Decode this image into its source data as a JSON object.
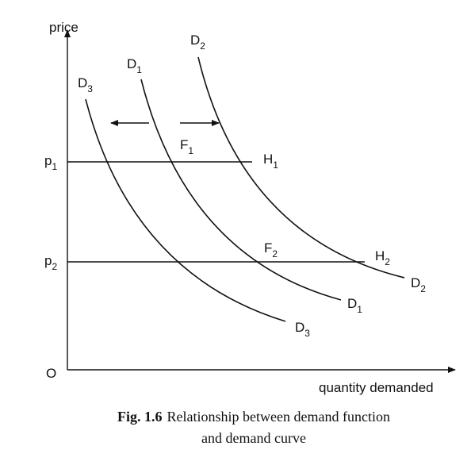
{
  "axes": {
    "y_label": "price",
    "x_label": "quantity demanded",
    "origin": "O"
  },
  "price_levels": [
    {
      "main": "p",
      "sub": "1"
    },
    {
      "main": "p",
      "sub": "2"
    }
  ],
  "curves": [
    {
      "top": {
        "main": "D",
        "sub": "3"
      },
      "end": {
        "main": "D",
        "sub": "3"
      }
    },
    {
      "top": {
        "main": "D",
        "sub": "1"
      },
      "end": {
        "main": "D",
        "sub": "1"
      }
    },
    {
      "top": {
        "main": "D",
        "sub": "2"
      },
      "end": {
        "main": "D",
        "sub": "2"
      }
    }
  ],
  "points": [
    {
      "main": "F",
      "sub": "1"
    },
    {
      "main": "H",
      "sub": "1"
    },
    {
      "main": "F",
      "sub": "2"
    },
    {
      "main": "H",
      "sub": "2"
    }
  ],
  "caption": {
    "number": "Fig. 1.6",
    "line1": "Relationship between demand function",
    "line2": "and demand curve"
  }
}
